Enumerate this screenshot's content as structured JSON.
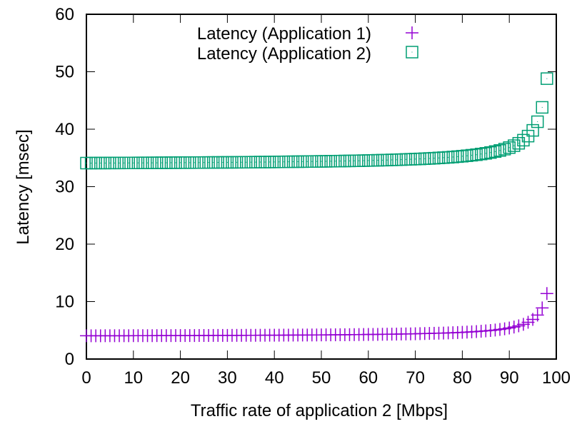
{
  "chart_data": {
    "type": "scatter",
    "title": "",
    "xlabel": "Traffic rate of application 2 [Mbps]",
    "ylabel": "Latency [msec]",
    "xlim": [
      0,
      100
    ],
    "ylim": [
      0,
      60
    ],
    "xticks": [
      0,
      10,
      20,
      30,
      40,
      50,
      60,
      70,
      80,
      90,
      100
    ],
    "yticks": [
      0,
      10,
      20,
      30,
      40,
      50,
      60
    ],
    "grid": false,
    "legend_position": "top-center",
    "x": [
      0,
      1,
      2,
      3,
      4,
      5,
      6,
      7,
      8,
      9,
      10,
      11,
      12,
      13,
      14,
      15,
      16,
      17,
      18,
      19,
      20,
      21,
      22,
      23,
      24,
      25,
      26,
      27,
      28,
      29,
      30,
      31,
      32,
      33,
      34,
      35,
      36,
      37,
      38,
      39,
      40,
      41,
      42,
      43,
      44,
      45,
      46,
      47,
      48,
      49,
      50,
      51,
      52,
      53,
      54,
      55,
      56,
      57,
      58,
      59,
      60,
      61,
      62,
      63,
      64,
      65,
      66,
      67,
      68,
      69,
      70,
      71,
      72,
      73,
      74,
      75,
      76,
      77,
      78,
      79,
      80,
      81,
      82,
      83,
      84,
      85,
      86,
      87,
      88,
      89,
      90,
      91,
      92,
      93,
      94,
      95,
      96,
      97,
      98
    ],
    "series": [
      {
        "name": "Latency (Application 1)",
        "marker": "plus",
        "color": "#9400d3",
        "values": [
          4.05,
          4.05,
          4.05,
          4.05,
          4.06,
          4.06,
          4.06,
          4.06,
          4.06,
          4.06,
          4.07,
          4.07,
          4.07,
          4.07,
          4.07,
          4.08,
          4.08,
          4.08,
          4.08,
          4.09,
          4.09,
          4.09,
          4.09,
          4.09,
          4.1,
          4.1,
          4.1,
          4.11,
          4.11,
          4.11,
          4.11,
          4.12,
          4.12,
          4.12,
          4.13,
          4.13,
          4.13,
          4.14,
          4.14,
          4.15,
          4.15,
          4.15,
          4.16,
          4.16,
          4.17,
          4.17,
          4.18,
          4.18,
          4.19,
          4.19,
          4.2,
          4.21,
          4.21,
          4.22,
          4.23,
          4.23,
          4.24,
          4.25,
          4.26,
          4.27,
          4.28,
          4.28,
          4.29,
          4.31,
          4.32,
          4.33,
          4.34,
          4.36,
          4.37,
          4.38,
          4.4,
          4.42,
          4.44,
          4.46,
          4.48,
          4.5,
          4.52,
          4.55,
          4.58,
          4.61,
          4.65,
          4.69,
          4.73,
          4.78,
          4.84,
          4.9,
          4.97,
          5.05,
          5.15,
          5.26,
          5.4,
          5.57,
          5.78,
          6.04,
          6.4,
          6.9,
          7.65,
          8.9,
          11.4
        ]
      },
      {
        "name": "Latency (Application 2)",
        "marker": "square",
        "color": "#009e73",
        "values": [
          34.1,
          34.1,
          34.11,
          34.11,
          34.11,
          34.12,
          34.12,
          34.12,
          34.13,
          34.13,
          34.13,
          34.14,
          34.14,
          34.14,
          34.15,
          34.15,
          34.16,
          34.16,
          34.17,
          34.17,
          34.18,
          34.18,
          34.18,
          34.19,
          34.19,
          34.2,
          34.21,
          34.21,
          34.22,
          34.22,
          34.23,
          34.23,
          34.24,
          34.25,
          34.25,
          34.26,
          34.27,
          34.28,
          34.28,
          34.29,
          34.3,
          34.31,
          34.32,
          34.33,
          34.34,
          34.35,
          34.36,
          34.37,
          34.38,
          34.39,
          34.4,
          34.41,
          34.43,
          34.44,
          34.45,
          34.47,
          34.48,
          34.5,
          34.51,
          34.53,
          34.55,
          34.57,
          34.59,
          34.61,
          34.63,
          34.66,
          34.68,
          34.71,
          34.74,
          34.77,
          34.8,
          34.83,
          34.87,
          34.91,
          34.95,
          35.0,
          35.05,
          35.1,
          35.16,
          35.23,
          35.3,
          35.38,
          35.47,
          35.56,
          35.68,
          35.8,
          35.94,
          36.11,
          36.3,
          36.53,
          36.8,
          37.13,
          37.55,
          38.09,
          38.8,
          39.8,
          41.3,
          43.8,
          48.8
        ]
      }
    ]
  }
}
